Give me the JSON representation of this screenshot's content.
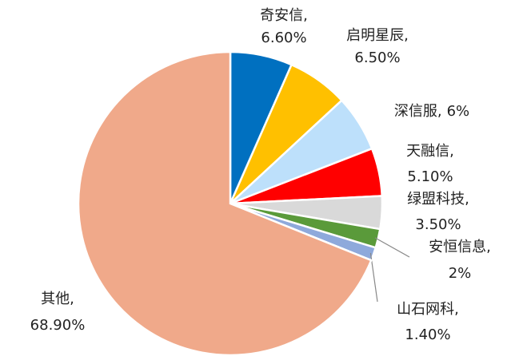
{
  "chart_data": {
    "type": "pie",
    "categories": [
      "奇安信,",
      "启明星辰,",
      "深信服,",
      "天融信,",
      "绿盟科技,",
      "安恒信息,",
      "山石网科,",
      "其他,"
    ],
    "values": [
      6.6,
      6.5,
      6,
      5.1,
      3.5,
      2,
      1.4,
      68.9
    ],
    "value_labels": [
      "6.60%",
      "6.50%",
      "6%",
      "5.10%",
      "3.50%",
      "2%",
      "1.40%",
      "68.90%"
    ],
    "colors": [
      "#0070c0",
      "#ffc000",
      "#bde0fb",
      "#ff0000",
      "#d9d9d9",
      "#5a9a3a",
      "#8ea9db",
      "#f0a98a"
    ]
  }
}
